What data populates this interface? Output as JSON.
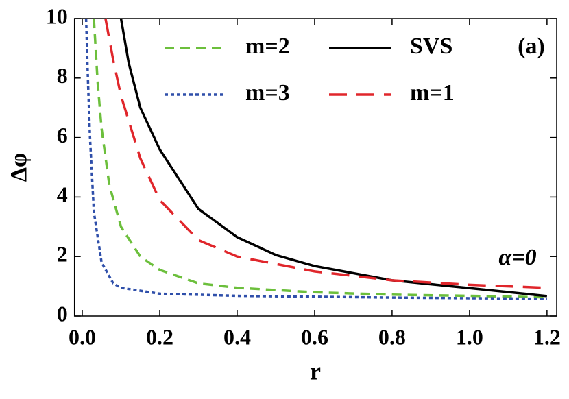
{
  "chart_data": {
    "type": "line",
    "xlabel": "r",
    "ylabel": "Δφ",
    "annotations": [
      "(a)",
      "α=0"
    ],
    "xlim": [
      -0.02,
      1.225
    ],
    "ylim": [
      0,
      10
    ],
    "xticks": [
      {
        "value": 0,
        "label": "0.0"
      },
      {
        "value": 0.2,
        "label": "0.2"
      },
      {
        "value": 0.4,
        "label": "0.4"
      },
      {
        "value": 0.6,
        "label": "0.6"
      },
      {
        "value": 0.8,
        "label": "0.8"
      },
      {
        "value": 1,
        "label": "1.0"
      },
      {
        "value": 1.2,
        "label": "1.2"
      }
    ],
    "yticks": [
      0,
      2,
      4,
      6,
      8,
      10
    ],
    "series": [
      {
        "name": "m=2",
        "color": "#6cbf3c",
        "dash": "dashed",
        "x": [
          0.03,
          0.04,
          0.05,
          0.07,
          0.1,
          0.15,
          0.2,
          0.3,
          0.4,
          0.6,
          0.8,
          1.0,
          1.2
        ],
        "values": [
          10,
          7.8,
          6.3,
          4.4,
          3.0,
          2.0,
          1.55,
          1.1,
          0.95,
          0.8,
          0.72,
          0.68,
          0.63
        ]
      },
      {
        "name": "SVS",
        "color": "#000000",
        "dash": "solid",
        "x": [
          0.1,
          0.12,
          0.15,
          0.2,
          0.3,
          0.4,
          0.5,
          0.6,
          0.8,
          1.0,
          1.2
        ],
        "values": [
          10,
          8.5,
          7.0,
          5.6,
          3.6,
          2.65,
          2.05,
          1.68,
          1.2,
          0.94,
          0.67
        ]
      },
      {
        "name": "m=3",
        "color": "#2f4faa",
        "dash": "dotted",
        "x": [
          0.01,
          0.015,
          0.02,
          0.03,
          0.05,
          0.08,
          0.1,
          0.2,
          0.4,
          0.8,
          1.2
        ],
        "values": [
          10,
          7.8,
          6,
          3.5,
          1.8,
          1.1,
          0.95,
          0.75,
          0.68,
          0.62,
          0.58
        ]
      },
      {
        "name": "m=1",
        "color": "#e0262b",
        "dash": "longdash",
        "x": [
          0.06,
          0.08,
          0.1,
          0.15,
          0.2,
          0.3,
          0.4,
          0.6,
          0.8,
          1.0,
          1.2
        ],
        "values": [
          10,
          8.6,
          7.4,
          5.3,
          3.9,
          2.55,
          2.0,
          1.5,
          1.2,
          1.05,
          0.95
        ]
      }
    ]
  }
}
